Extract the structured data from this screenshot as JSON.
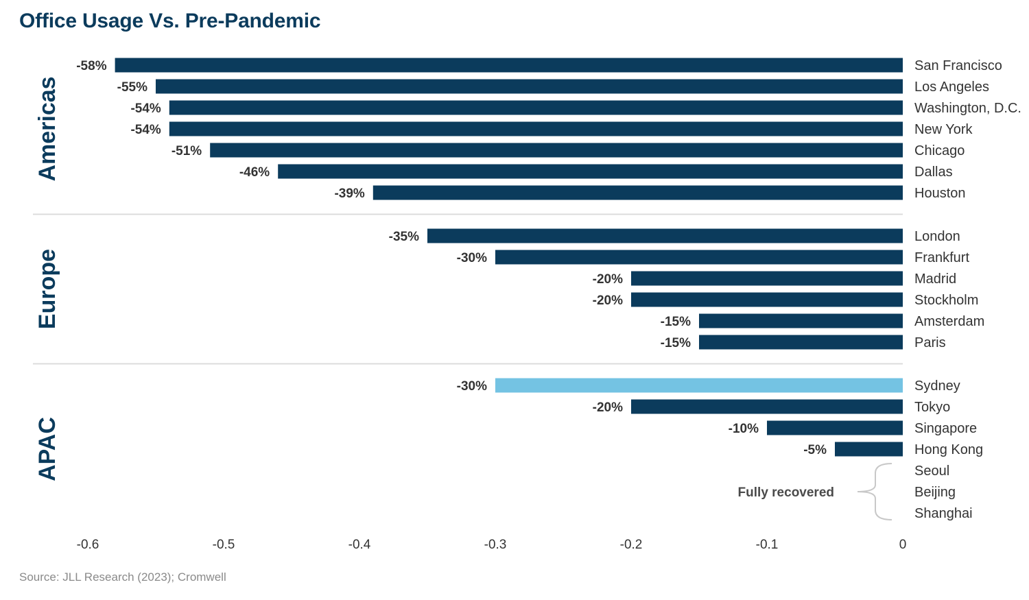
{
  "chart_data": {
    "type": "bar",
    "orientation": "horizontal",
    "title": "Office Usage Vs. Pre-Pandemic",
    "source": "Source: JLL Research (2023); Cromwell",
    "xlim": [
      -0.6,
      0
    ],
    "x_ticks": [
      {
        "value": -0.6,
        "label": "-0.6"
      },
      {
        "value": -0.5,
        "label": "-0.5"
      },
      {
        "value": -0.4,
        "label": "-0.4"
      },
      {
        "value": -0.3,
        "label": "-0.3"
      },
      {
        "value": -0.2,
        "label": "-0.2"
      },
      {
        "value": -0.1,
        "label": "-0.1"
      },
      {
        "value": 0,
        "label": "0"
      }
    ],
    "colors": {
      "default": "#0b3b5c",
      "highlight": "#74c3e3",
      "title": "#0b3b5c",
      "divider": "#dcdcdc"
    },
    "groups": [
      {
        "name": "Americas",
        "items": [
          {
            "city": "San Francisco",
            "value": -0.58,
            "label": "-58%"
          },
          {
            "city": "Los Angeles",
            "value": -0.55,
            "label": "-55%"
          },
          {
            "city": "Washington, D.C.",
            "value": -0.54,
            "label": "-54%"
          },
          {
            "city": "New York",
            "value": -0.54,
            "label": "-54%"
          },
          {
            "city": "Chicago",
            "value": -0.51,
            "label": "-51%"
          },
          {
            "city": "Dallas",
            "value": -0.46,
            "label": "-46%"
          },
          {
            "city": "Houston",
            "value": -0.39,
            "label": "-39%"
          }
        ]
      },
      {
        "name": "Europe",
        "items": [
          {
            "city": "London",
            "value": -0.35,
            "label": "-35%"
          },
          {
            "city": "Frankfurt",
            "value": -0.3,
            "label": "-30%"
          },
          {
            "city": "Madrid",
            "value": -0.2,
            "label": "-20%"
          },
          {
            "city": "Stockholm",
            "value": -0.2,
            "label": "-20%"
          },
          {
            "city": "Amsterdam",
            "value": -0.15,
            "label": "-15%"
          },
          {
            "city": "Paris",
            "value": -0.15,
            "label": "-15%"
          }
        ]
      },
      {
        "name": "APAC",
        "items": [
          {
            "city": "Sydney",
            "value": -0.3,
            "label": "-30%",
            "highlight": true
          },
          {
            "city": "Tokyo",
            "value": -0.2,
            "label": "-20%"
          },
          {
            "city": "Singapore",
            "value": -0.1,
            "label": "-10%"
          },
          {
            "city": "Hong Kong",
            "value": -0.05,
            "label": "-5%"
          },
          {
            "city": "Seoul",
            "value": 0,
            "label": ""
          },
          {
            "city": "Beijing",
            "value": 0,
            "label": ""
          },
          {
            "city": "Shanghai",
            "value": 0,
            "label": ""
          }
        ]
      }
    ],
    "annotation": {
      "text": "Fully recovered",
      "cities": [
        "Seoul",
        "Beijing",
        "Shanghai"
      ]
    }
  }
}
